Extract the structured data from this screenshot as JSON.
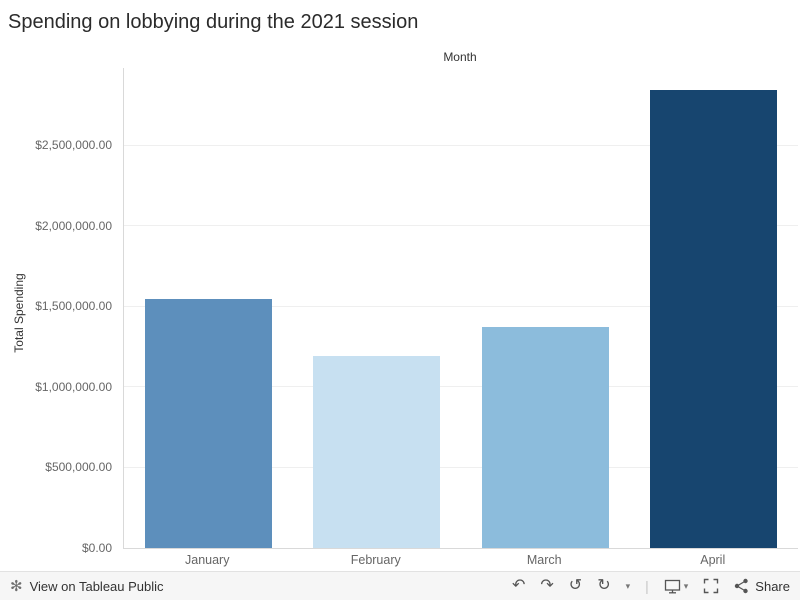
{
  "title": "Spending on lobbying during the 2021 session",
  "chart_data": {
    "type": "bar",
    "title": "Spending on lobbying during the 2021 session",
    "column_header": "Month",
    "xlabel": "Month",
    "ylabel": "Total Spending",
    "categories": [
      "January",
      "February",
      "March",
      "April"
    ],
    "values": [
      1545000,
      1190000,
      1375000,
      2845000
    ],
    "bar_colors": [
      "#5d8fbc",
      "#c7e0f1",
      "#8cbcdc",
      "#17456f"
    ],
    "ylim": [
      0,
      2980000
    ],
    "ytick_values": [
      0,
      500000,
      1000000,
      1500000,
      2000000,
      2500000
    ],
    "ytick_labels": [
      "$0.00",
      "$500,000.00",
      "$1,000,000.00",
      "$1,500,000.00",
      "$2,000,000.00",
      "$2,500,000.00"
    ],
    "grid": true,
    "legend": false
  },
  "footer": {
    "view_label": "View on Tableau Public",
    "share_label": "Share",
    "logo_glyph": "✻",
    "icons": {
      "undo": "↶",
      "redo": "↷",
      "revert": "↺",
      "refresh": "↻",
      "caret": "▾",
      "separator": "|"
    }
  }
}
